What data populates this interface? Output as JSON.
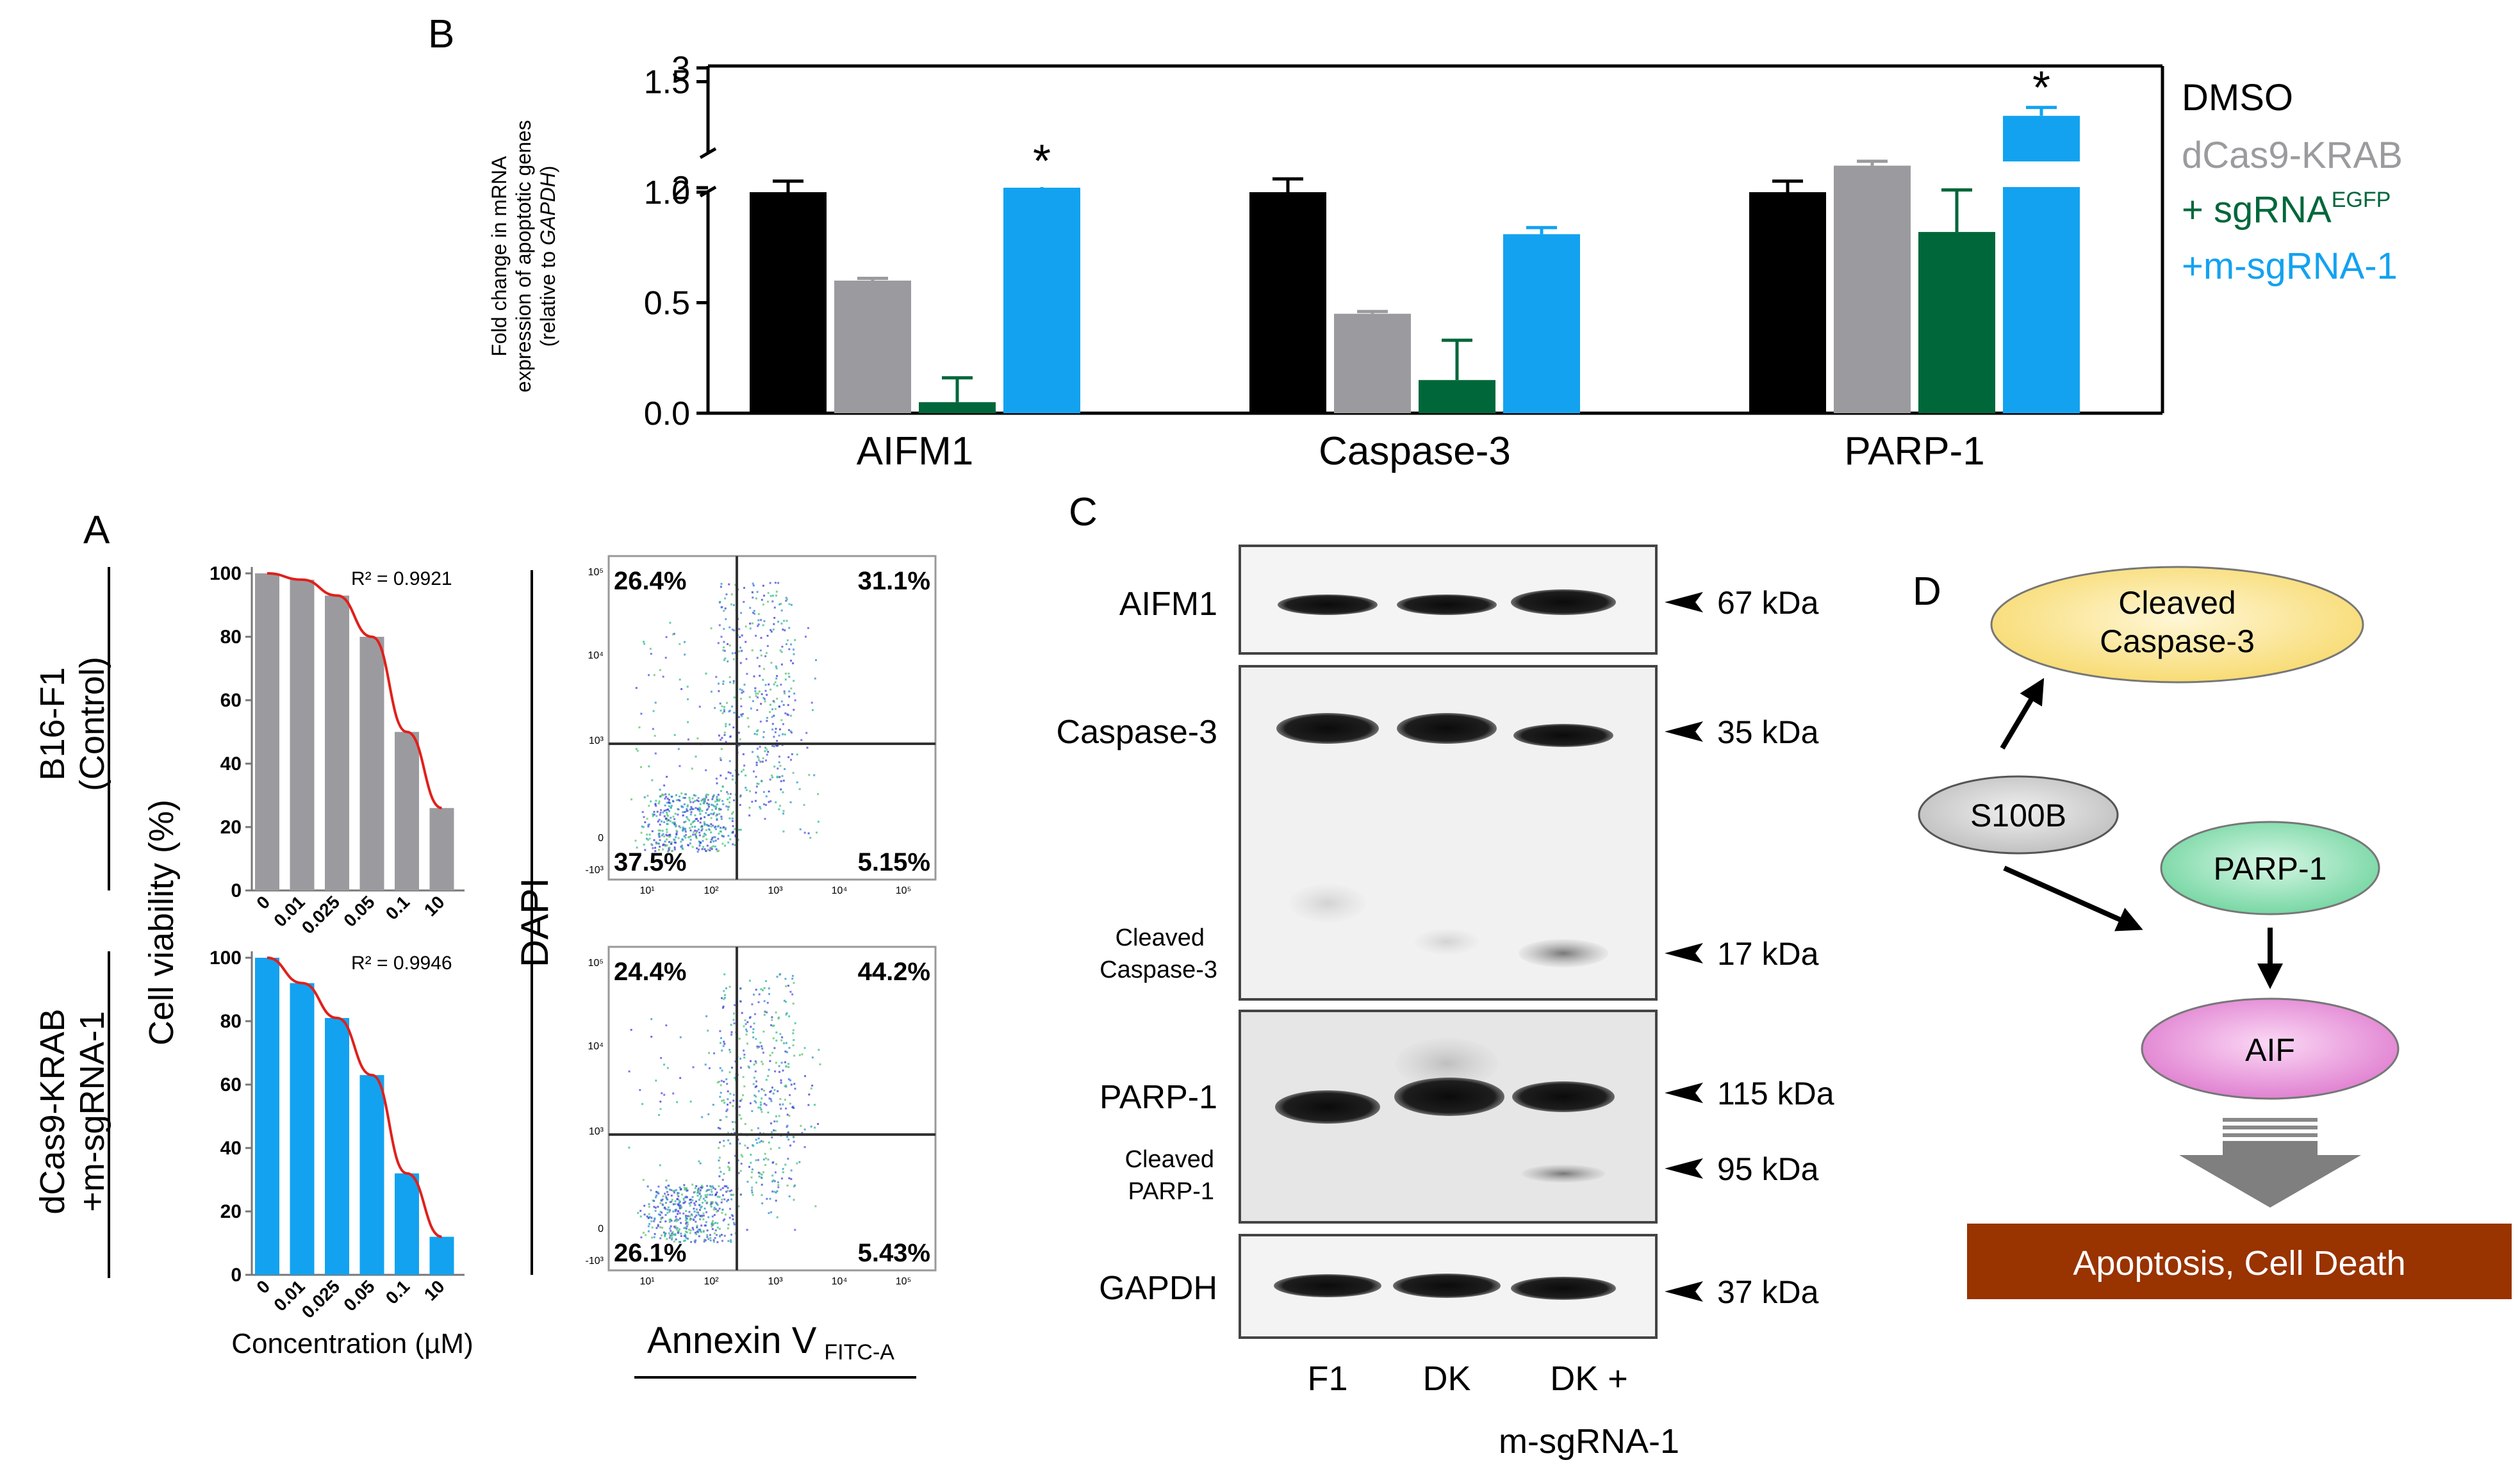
{
  "panel_letters": {
    "a": "A",
    "b": "B",
    "c": "C",
    "d": "D"
  },
  "colors": {
    "dmso": "#000000",
    "dcas9_krab": "#9b9b9f",
    "sgrna_egfp": "#00673b",
    "m_sgrna_1": "#13a2f0",
    "viability_control_bars": "#9b9b9f",
    "viability_treated_bars": "#13a2f0",
    "fit_curve": "#e0201b",
    "node_caspase": "#fbe68b",
    "node_parp": "#7fdcaa",
    "node_aif": "#e78cd9",
    "node_s100b": "#d6d6d6",
    "outcome_box": "#993300"
  },
  "chart_data": [
    {
      "id": "B",
      "type": "bar",
      "title": "",
      "ylabel": "Fold change in mRNA expression of apoptotic genes (relative to GAPDH)",
      "ylabel_lines": [
        "Fold change in mRNA",
        "expression of apoptotic genes",
        "(relative to ",
        "GAPDH",
        ")"
      ],
      "categories": [
        "AIFM1",
        "Caspase-3",
        "PARP-1"
      ],
      "y_ticks_lower": [
        "0.0",
        "0.5",
        "1.0",
        "1.5"
      ],
      "y_ticks_upper": [
        "2",
        "3"
      ],
      "ylim": [
        0,
        3
      ],
      "axis_break": [
        1.5,
        1.75
      ],
      "significance_marker": "*",
      "series": [
        {
          "name": "DMSO",
          "values": [
            1.0,
            1.0,
            1.0
          ],
          "errors": [
            0.05,
            0.06,
            0.05
          ],
          "color": "#000000"
        },
        {
          "name": "dCas9-KRAB",
          "values": [
            0.6,
            0.45,
            1.12
          ],
          "errors": [
            0.01,
            0.01,
            0.02
          ],
          "color": "#9b9b9f"
        },
        {
          "name": "+ sgRNA",
          "name_sup": "EGFP",
          "values": [
            0.05,
            0.15,
            0.82
          ],
          "errors": [
            0.11,
            0.18,
            0.19
          ],
          "color": "#00673b"
        },
        {
          "name": "+m-sgRNA-1",
          "values": [
            2.0,
            0.81,
            2.6
          ],
          "errors": [
            0.06,
            0.03,
            0.07
          ],
          "color": "#13a2f0",
          "significant": [
            true,
            false,
            true
          ]
        }
      ],
      "legend": [
        "DMSO",
        "dCas9-KRAB",
        "+ sgRNA",
        "+m-sgRNA-1"
      ],
      "legend_sup": "EGFP",
      "legend_position": "right"
    },
    {
      "id": "A-viability-control",
      "type": "bar",
      "row_label": [
        "B16-F1",
        "(Control)"
      ],
      "categories": [
        "0",
        "0.01",
        "0.025",
        "0.05",
        "0.1",
        "10"
      ],
      "values": [
        100,
        98,
        93,
        80,
        50,
        26
      ],
      "y_ticks": [
        "0",
        "20",
        "40",
        "60",
        "80",
        "100"
      ],
      "ylim": [
        0,
        100
      ],
      "r_squared_label": "R² = 0.9921",
      "color": "#9b9b9f"
    },
    {
      "id": "A-viability-treated",
      "type": "bar",
      "row_label": [
        "dCas9-KRAB",
        "+m-sgRNA-1"
      ],
      "categories": [
        "0",
        "0.01",
        "0.025",
        "0.05",
        "0.1",
        "10"
      ],
      "values": [
        100,
        92,
        81,
        63,
        32,
        12
      ],
      "y_ticks": [
        "0",
        "20",
        "40",
        "60",
        "80",
        "100"
      ],
      "ylim": [
        0,
        100
      ],
      "r_squared_label": "R² = 0.9946",
      "color": "#13a2f0",
      "ylabel": "Cell viability (%)",
      "xlabel": "Concentration (µM)"
    },
    {
      "id": "A-flow-control",
      "type": "scatter",
      "quadrants": {
        "top_left": "26.4%",
        "top_right": "31.1%",
        "bottom_left": "37.5%",
        "bottom_right": "5.15%"
      },
      "y_ticks": [
        "10⁵",
        "10⁴",
        "10³",
        "0",
        "-10³"
      ],
      "x_ticks": [
        "10¹",
        "10²",
        "10³",
        "10⁴",
        "10⁵"
      ]
    },
    {
      "id": "A-flow-treated",
      "type": "scatter",
      "quadrants": {
        "top_left": "24.4%",
        "top_right": "44.2%",
        "bottom_left": "26.1%",
        "bottom_right": "5.43%"
      },
      "y_ticks": [
        "10⁵",
        "10⁴",
        "10³",
        "0",
        "-10³"
      ],
      "x_ticks": [
        "10¹",
        "10²",
        "10³",
        "10⁴",
        "10⁵"
      ],
      "ylabel": "DAPI",
      "xlabel": "Annexin V",
      "xlabel_sub": "FITC-A"
    }
  ],
  "western_blot": {
    "lanes": [
      "F1",
      "DK",
      "DK +"
    ],
    "lane3_line2": "m-sgRNA-1",
    "rows": [
      {
        "label": "AIFM1",
        "markers": [
          "67 kDa"
        ]
      },
      {
        "label": "Caspase-3",
        "sub_label": [
          "Cleaved",
          "Caspase-3"
        ],
        "markers": [
          "35 kDa",
          "17 kDa"
        ]
      },
      {
        "label": "PARP-1",
        "sub_label": [
          "Cleaved",
          "PARP-1"
        ],
        "markers": [
          "115 kDa",
          "95 kDa"
        ]
      },
      {
        "label": "GAPDH",
        "markers": [
          "37 kDa"
        ]
      }
    ]
  },
  "pathway": {
    "cleaved_caspase": [
      "Cleaved",
      "Caspase-3"
    ],
    "s100b": "S100B",
    "parp1": "PARP-1",
    "aif": "AIF",
    "outcome": "Apoptosis, Cell Death"
  }
}
